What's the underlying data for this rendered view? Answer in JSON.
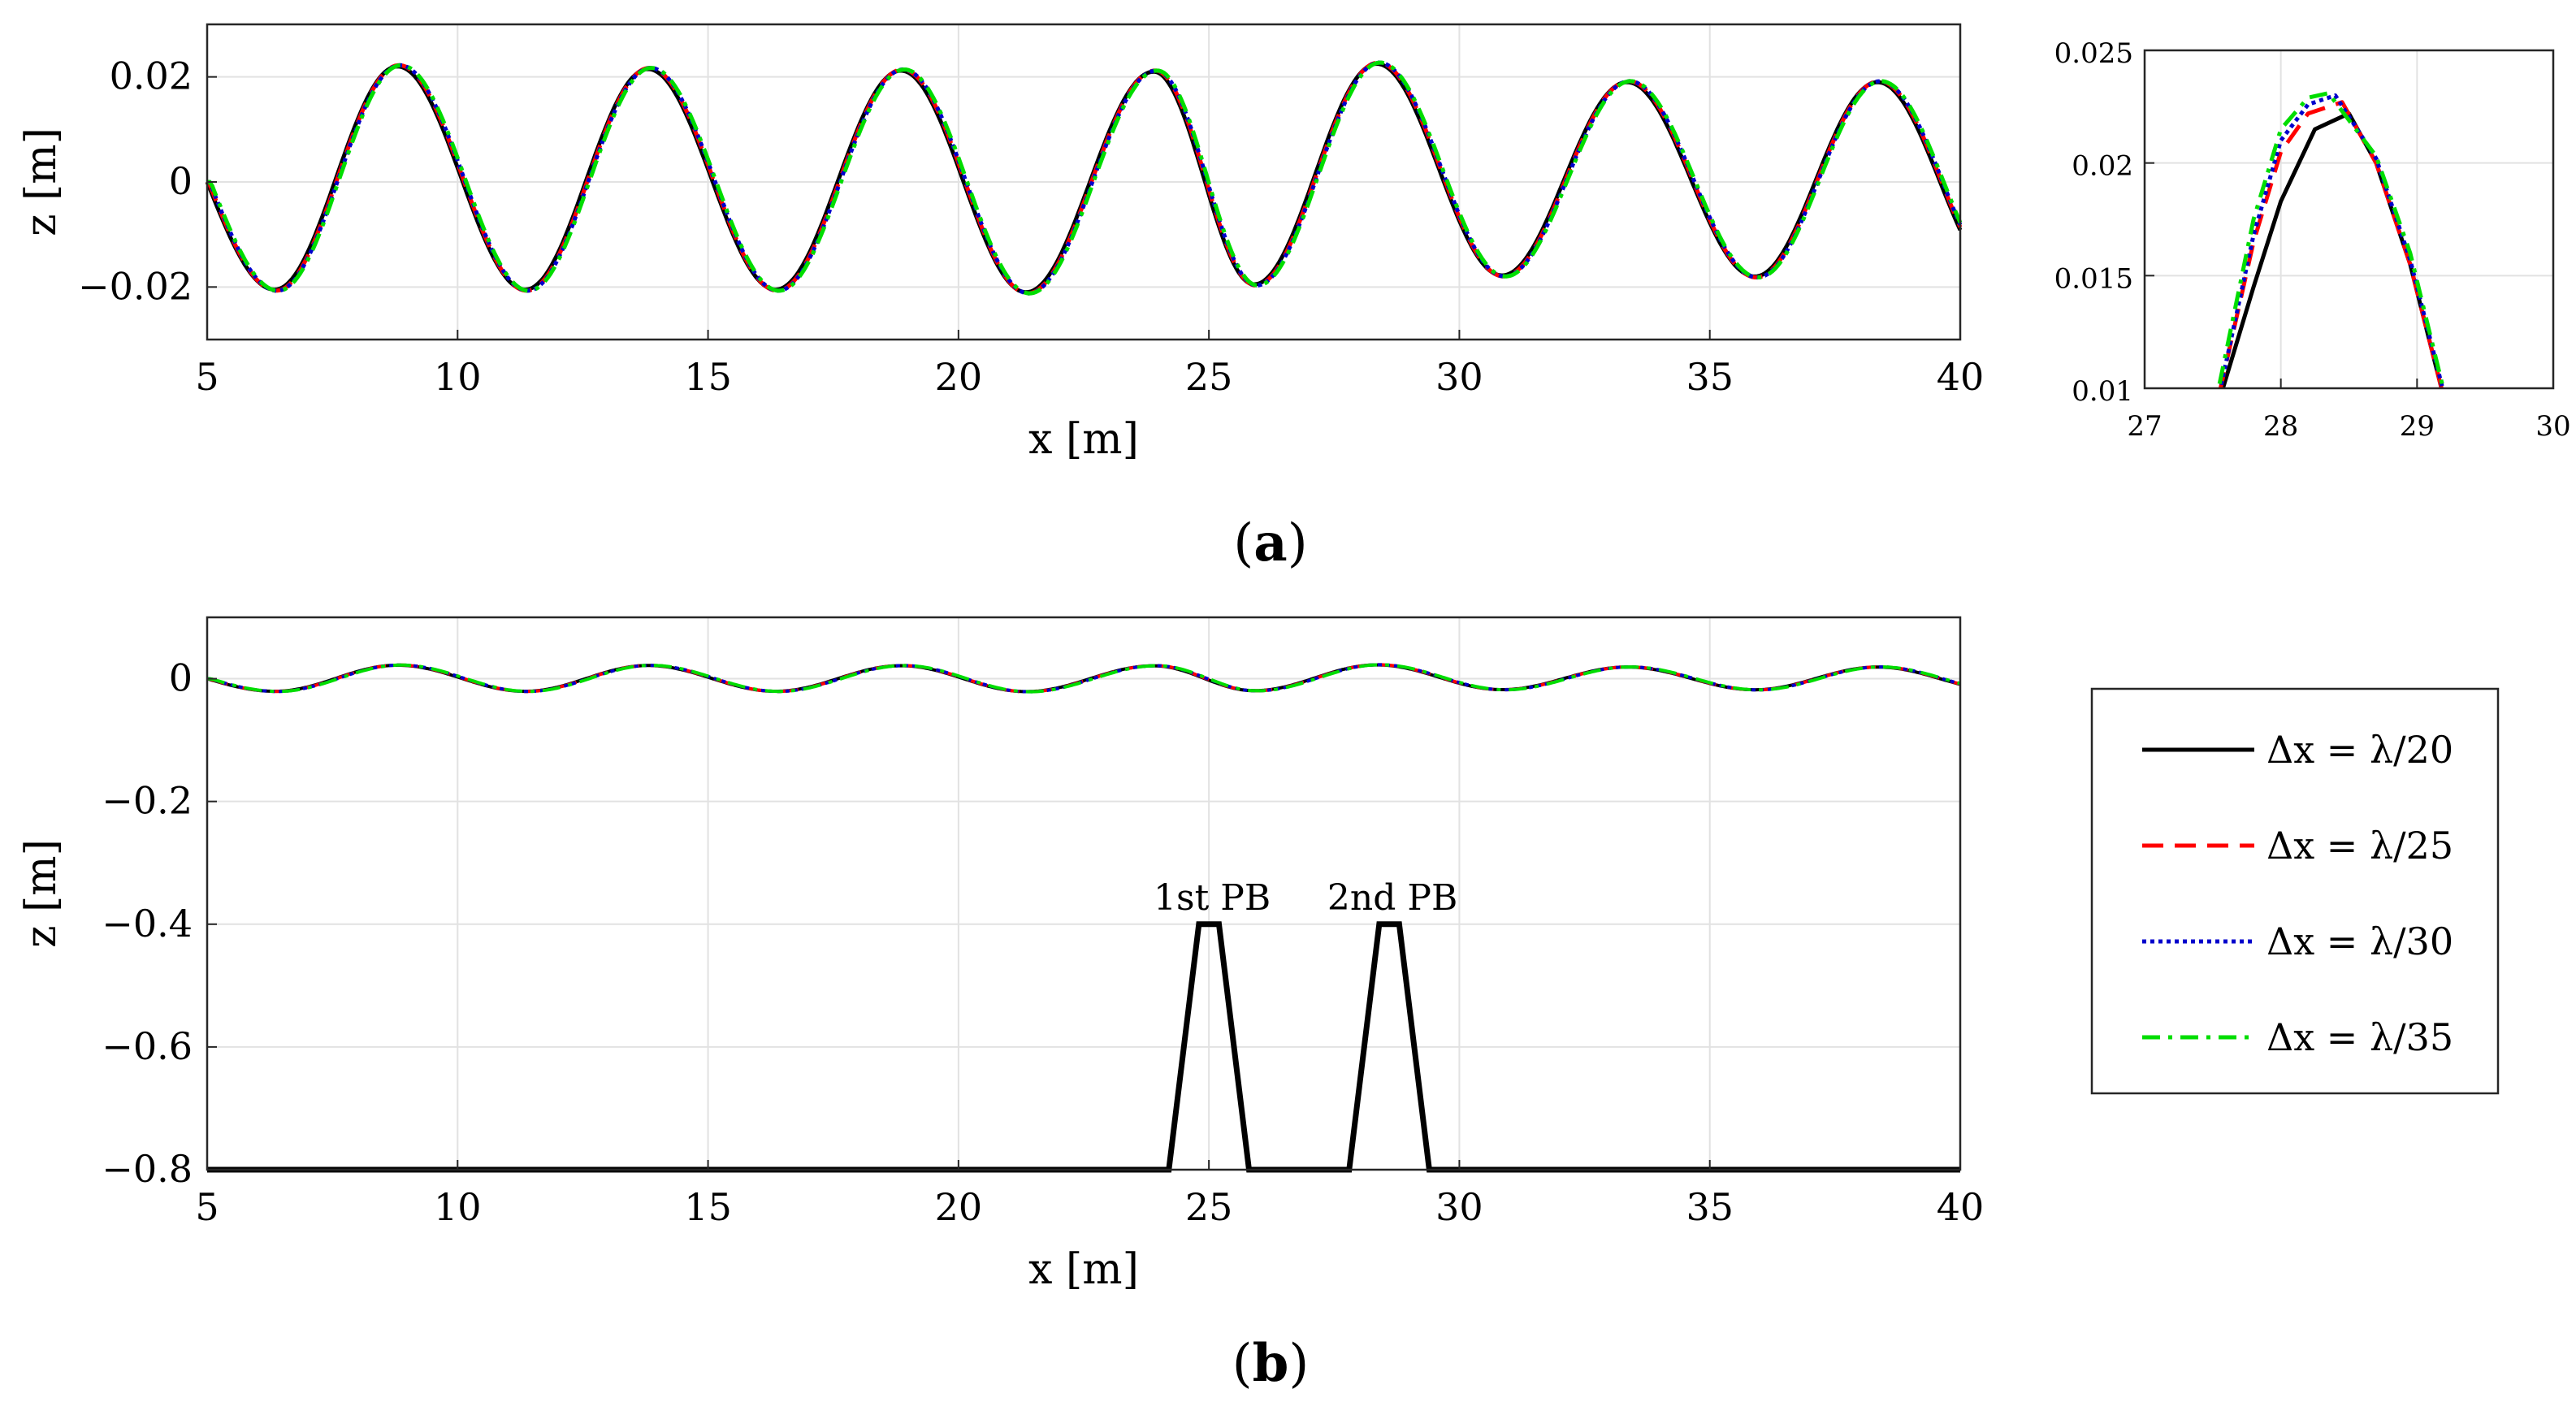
{
  "series_styles": [
    {
      "name": "Δx = λ/20",
      "color": "#000000",
      "dash": "solid"
    },
    {
      "name": "Δx = λ/25",
      "color": "#ff0000",
      "dash": "dashed"
    },
    {
      "name": "Δx = λ/30",
      "color": "#0000cc",
      "dash": "dotted"
    },
    {
      "name": "Δx = λ/35",
      "color": "#00dd00",
      "dash": "dashdot"
    }
  ],
  "chart_data": [
    {
      "id": "a",
      "type": "line",
      "xlabel": "x [m]",
      "ylabel": "z [m]",
      "xlim": [
        5,
        40
      ],
      "ylim": [
        -0.03,
        0.03
      ],
      "xticks": [
        5,
        10,
        15,
        20,
        25,
        30,
        35,
        40
      ],
      "yticks": [
        -0.02,
        0,
        0.02
      ],
      "ytick_labels": [
        "−0.02",
        "0",
        "0.02"
      ],
      "grid": true,
      "x_start": 5,
      "x_step": 0.05,
      "series_shift": [
        0,
        0.03,
        0.05,
        0.07
      ],
      "crests": [
        {
          "x": 8.8,
          "z": 0.022
        },
        {
          "x": 13.8,
          "z": 0.0215
        },
        {
          "x": 18.85,
          "z": 0.0212
        },
        {
          "x": 23.9,
          "z": 0.021
        },
        {
          "x": 28.35,
          "z": 0.0225
        },
        {
          "x": 33.35,
          "z": 0.019
        },
        {
          "x": 38.35,
          "z": 0.019
        }
      ],
      "troughs": [
        {
          "x": 6.35,
          "z": -0.0205
        },
        {
          "x": 11.35,
          "z": -0.0205
        },
        {
          "x": 16.35,
          "z": -0.0205
        },
        {
          "x": 21.35,
          "z": -0.021
        },
        {
          "x": 25.9,
          "z": -0.0195
        },
        {
          "x": 30.85,
          "z": -0.0178
        },
        {
          "x": 35.9,
          "z": -0.018
        }
      ],
      "end_values": [
        {
          "x": 5,
          "z": 0
        },
        {
          "x": 40,
          "z": -0.008
        }
      ]
    },
    {
      "id": "a-inset",
      "type": "line",
      "xlim": [
        27,
        30
      ],
      "ylim": [
        0.01,
        0.025
      ],
      "xticks": [
        27,
        28,
        29,
        30
      ],
      "yticks": [
        0.01,
        0.015,
        0.02,
        0.025
      ],
      "ytick_labels": [
        "0.01",
        "0.015",
        "0.02",
        "0.025"
      ],
      "grid": true,
      "series": [
        {
          "name": "Δx = λ/20",
          "x": [
            27.55,
            27.8,
            28.0,
            28.25,
            28.5,
            28.7,
            28.95,
            29.2
          ],
          "y": [
            0.0095,
            0.0145,
            0.0183,
            0.0215,
            0.0222,
            0.02,
            0.0155,
            0.0095
          ]
        },
        {
          "name": "Δx = λ/25",
          "x": [
            27.55,
            27.8,
            28.0,
            28.2,
            28.45,
            28.7,
            28.95,
            29.2
          ],
          "y": [
            0.0098,
            0.0165,
            0.0205,
            0.0222,
            0.0227,
            0.02,
            0.0155,
            0.0095
          ]
        },
        {
          "name": "Δx = λ/30",
          "x": [
            27.55,
            27.8,
            28.0,
            28.2,
            28.4,
            28.7,
            28.95,
            29.2
          ],
          "y": [
            0.0098,
            0.0168,
            0.021,
            0.0226,
            0.023,
            0.0202,
            0.0157,
            0.0097
          ]
        },
        {
          "name": "Δx = λ/35",
          "x": [
            27.55,
            27.8,
            28.0,
            28.2,
            28.35,
            28.7,
            28.95,
            29.2
          ],
          "y": [
            0.0102,
            0.0175,
            0.0215,
            0.0229,
            0.0231,
            0.0203,
            0.016,
            0.0098
          ]
        }
      ]
    },
    {
      "id": "b",
      "type": "line",
      "xlabel": "x [m]",
      "ylabel": "z [m]",
      "xlim": [
        5,
        40
      ],
      "ylim": [
        -0.8,
        0.1
      ],
      "xticks": [
        5,
        10,
        15,
        20,
        25,
        30,
        35,
        40
      ],
      "yticks": [
        -0.8,
        -0.6,
        -0.4,
        -0.2,
        0
      ],
      "ytick_labels": [
        "−0.8",
        "−0.6",
        "−0.4",
        "−0.2",
        "0"
      ],
      "grid": true,
      "surface": "same as panel (a)",
      "bottom_profile": {
        "x": [
          5,
          24.2,
          24.8,
          25.2,
          25.8,
          27.8,
          28.4,
          28.8,
          29.4,
          40
        ],
        "y": [
          -0.8,
          -0.8,
          -0.4,
          -0.4,
          -0.8,
          -0.8,
          -0.4,
          -0.4,
          -0.8,
          -0.8
        ]
      },
      "annotations": [
        {
          "text": "1st PB",
          "x": 25.0,
          "y": -0.4
        },
        {
          "text": "2nd PB",
          "x": 28.6,
          "y": -0.4
        }
      ]
    }
  ],
  "panel_labels": {
    "a": "(a)",
    "b": "(b)"
  }
}
